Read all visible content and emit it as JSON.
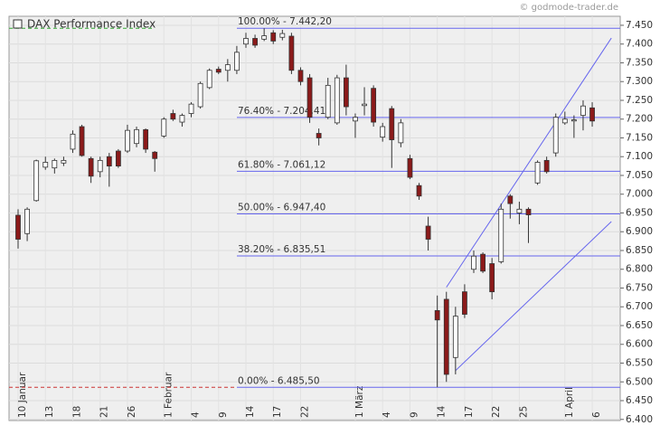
{
  "chart_data": {
    "type": "candlestick",
    "title": "DAX Performance Index",
    "watermark": "© godmode-trader.de",
    "categories": [
      "10 Januar",
      null,
      null,
      "13",
      null,
      null,
      "18",
      null,
      null,
      "21",
      null,
      null,
      "26",
      null,
      null,
      null,
      "1 Februar",
      null,
      null,
      "4",
      null,
      null,
      "9",
      null,
      null,
      "14",
      null,
      null,
      "17",
      null,
      null,
      "22",
      null,
      null,
      null,
      null,
      null,
      "1 März",
      null,
      null,
      "4",
      null,
      null,
      "9",
      null,
      null,
      "14",
      null,
      null,
      "17",
      null,
      null,
      "22",
      null,
      null,
      "25",
      null,
      null,
      null,
      null,
      "1 April",
      null,
      null,
      "6",
      null
    ],
    "series": [
      {
        "name": "DAX Performance Index",
        "up_color": "#ffffff",
        "down_color": "#8b1a1a",
        "wick_color": "#333333",
        "open": [
          6944,
          6895,
          6983,
          7072,
          7070,
          7083,
          7120,
          7180,
          7095,
          7060,
          7100,
          7115,
          7115,
          7135,
          7172,
          7112,
          7155,
          7215,
          7192,
          7215,
          7233,
          7284,
          7333,
          7330,
          7330,
          7400,
          7415,
          7413,
          7430,
          7418,
          7421,
          7330,
          7310,
          7162,
          7205,
          7190,
          7310,
          7195,
          7236,
          7282,
          7152,
          7228,
          7137,
          7095,
          7023,
          6915,
          6690,
          6720,
          6565,
          6740,
          6800,
          6840,
          6815,
          6820,
          6995,
          6950,
          6960,
          7030,
          7090,
          7110,
          7190,
          7195,
          7210,
          7230
        ],
        "high": [
          6960,
          6965,
          7092,
          7100,
          7095,
          7100,
          7170,
          7185,
          7100,
          7100,
          7110,
          7120,
          7185,
          7180,
          7175,
          7115,
          7205,
          7225,
          7215,
          7245,
          7300,
          7335,
          7340,
          7360,
          7395,
          7430,
          7425,
          7442,
          7437,
          7438,
          7430,
          7338,
          7320,
          7175,
          7310,
          7318,
          7345,
          7215,
          7285,
          7290,
          7190,
          7235,
          7200,
          7105,
          7030,
          6940,
          6730,
          6740,
          6700,
          6760,
          6850,
          6845,
          6830,
          6975,
          7000,
          6980,
          6965,
          7090,
          7100,
          7215,
          7220,
          7210,
          7250,
          7245
        ],
        "low": [
          6855,
          6875,
          6980,
          7065,
          7055,
          7075,
          7110,
          7100,
          7030,
          7045,
          7020,
          7070,
          7110,
          7125,
          7110,
          7060,
          7150,
          7195,
          7180,
          7205,
          7228,
          7280,
          7320,
          7300,
          7320,
          7390,
          7390,
          7408,
          7400,
          7410,
          7320,
          7290,
          7190,
          7130,
          7200,
          7185,
          7210,
          7150,
          7210,
          7180,
          7140,
          7070,
          7125,
          7040,
          6985,
          6850,
          6486,
          6500,
          6520,
          6670,
          6790,
          6790,
          6720,
          6815,
          6935,
          6920,
          6870,
          7025,
          7055,
          7100,
          7185,
          7150,
          7170,
          7180
        ],
        "close": [
          6880,
          6960,
          7089,
          7085,
          7090,
          7090,
          7160,
          7103,
          7048,
          7090,
          7075,
          7075,
          7170,
          7172,
          7120,
          7095,
          7200,
          7200,
          7210,
          7240,
          7295,
          7330,
          7325,
          7345,
          7378,
          7415,
          7397,
          7422,
          7408,
          7428,
          7330,
          7300,
          7205,
          7150,
          7290,
          7310,
          7233,
          7205,
          7240,
          7192,
          7180,
          7145,
          7190,
          7045,
          6995,
          6880,
          6665,
          6520,
          6675,
          6680,
          6835,
          6795,
          6740,
          6960,
          6975,
          6960,
          6945,
          7085,
          7060,
          7205,
          7200,
          7198,
          7235,
          7195
        ]
      }
    ],
    "fib_levels": [
      {
        "label": "100.00% - 7.442,20",
        "value": 7442.2
      },
      {
        "label": "76.40% - 7.204,41",
        "value": 7204.41
      },
      {
        "label": "61.80% - 7.061,12",
        "value": 7061.12
      },
      {
        "label": "50.00% - 6.947,40",
        "value": 6947.4
      },
      {
        "label": "38.20% - 6.835,51",
        "value": 6835.51
      },
      {
        "label": "0.00% - 6.485,50",
        "value": 6485.5
      }
    ],
    "fib_color": "#6666ee",
    "fib_top_ext_color": "#33aa33",
    "fib_bottom_ext_color": "#cc3333",
    "trendlines": [
      {
        "x": [
          48,
          65.1
        ],
        "y": [
          6530,
          6927
        ]
      },
      {
        "x": [
          47,
          65.1
        ],
        "y": [
          6752,
          7416
        ]
      }
    ],
    "ylim": [
      6397,
      7474
    ],
    "yticks": [
      {
        "value": 6400,
        "label": "6.400"
      },
      {
        "value": 6450,
        "label": "6.450"
      },
      {
        "value": 6500,
        "label": "6.500"
      },
      {
        "value": 6550,
        "label": "6.550"
      },
      {
        "value": 6600,
        "label": "6.600"
      },
      {
        "value": 6650,
        "label": "6.650"
      },
      {
        "value": 6700,
        "label": "6.700"
      },
      {
        "value": 6750,
        "label": "6.750"
      },
      {
        "value": 6800,
        "label": "6.800"
      },
      {
        "value": 6850,
        "label": "6.850"
      },
      {
        "value": 6900,
        "label": "6.900"
      },
      {
        "value": 6950,
        "label": "6.950"
      },
      {
        "value": 7000,
        "label": "7.000"
      },
      {
        "value": 7050,
        "label": "7.050"
      },
      {
        "value": 7100,
        "label": "7.100"
      },
      {
        "value": 7150,
        "label": "7.150"
      },
      {
        "value": 7200,
        "label": "7.200"
      },
      {
        "value": 7250,
        "label": "7.250"
      },
      {
        "value": 7300,
        "label": "7.300"
      },
      {
        "value": 7350,
        "label": "7.350"
      },
      {
        "value": 7400,
        "label": "7.400"
      },
      {
        "value": 7450,
        "label": "7.450"
      }
    ],
    "grid": true
  }
}
